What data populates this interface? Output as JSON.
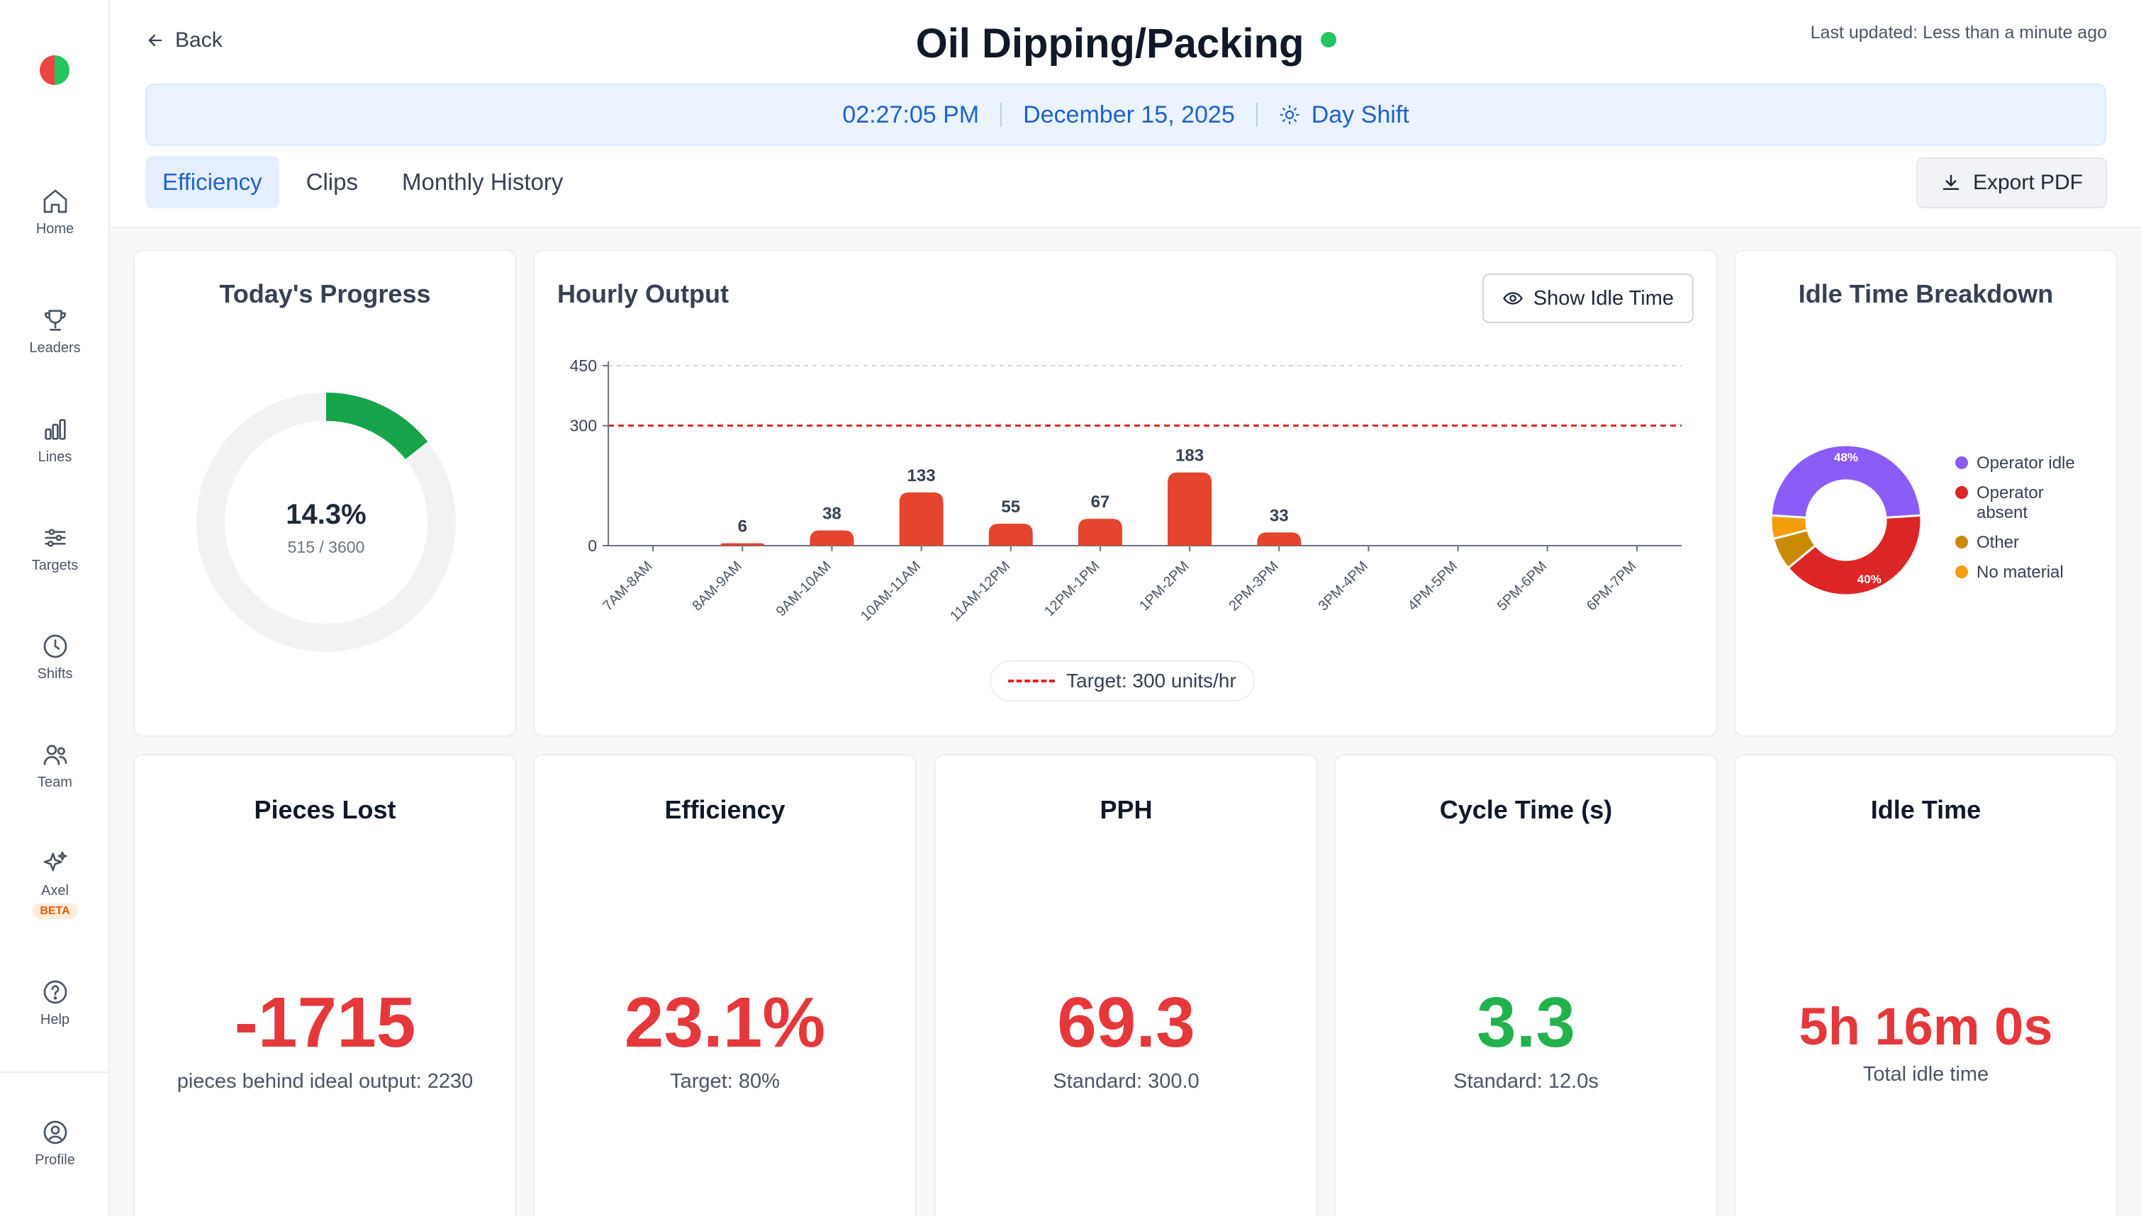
{
  "sidebar": {
    "items": [
      {
        "label": "Home",
        "icon": "home-icon"
      },
      {
        "label": "Leaders",
        "icon": "trophy-icon"
      },
      {
        "label": "Lines",
        "icon": "bar-chart-icon"
      },
      {
        "label": "Targets",
        "icon": "sliders-icon"
      },
      {
        "label": "Shifts",
        "icon": "clock-icon"
      },
      {
        "label": "Team",
        "icon": "users-icon"
      },
      {
        "label": "Axel",
        "icon": "sparkles-icon",
        "badge": "BETA"
      },
      {
        "label": "Help",
        "icon": "help-circle-icon"
      },
      {
        "label": "Profile",
        "icon": "user-circle-icon"
      }
    ]
  },
  "header": {
    "back_label": "Back",
    "title": "Oil Dipping/Packing",
    "last_updated": "Last updated: Less than a minute ago",
    "time": "02:27:05 PM",
    "date": "December 15, 2025",
    "shift": "Day Shift",
    "tabs": [
      {
        "label": "Efficiency",
        "active": true
      },
      {
        "label": "Clips",
        "active": false
      },
      {
        "label": "Monthly History",
        "active": false
      }
    ],
    "export_label": "Export PDF"
  },
  "progress": {
    "title": "Today's Progress",
    "percent_label": "14.3%",
    "count_label": "515 / 3600",
    "fraction": 0.143
  },
  "hourly": {
    "title": "Hourly Output",
    "idle_button": "Show Idle Time",
    "target_label": "Target: 300 units/hr"
  },
  "breakdown": {
    "title": "Idle Time Breakdown"
  },
  "chart_data": [
    {
      "type": "bar",
      "title": "Hourly Output",
      "categories": [
        "7AM-8AM",
        "8AM-9AM",
        "9AM-10AM",
        "10AM-11AM",
        "11AM-12PM",
        "12PM-1PM",
        "1PM-2PM",
        "2PM-3PM",
        "3PM-4PM",
        "4PM-5PM",
        "5PM-6PM",
        "6PM-7PM"
      ],
      "values": [
        0,
        6,
        38,
        133,
        55,
        67,
        183,
        33,
        null,
        null,
        null,
        null
      ],
      "yticks": [
        0,
        300,
        450
      ],
      "ylim": [
        0,
        450
      ],
      "target": 300,
      "legend": "Target: 300 units/hr",
      "colors": {
        "bar": "#e5452f",
        "target": "#dc2626"
      }
    },
    {
      "type": "pie",
      "title": "Idle Time Breakdown",
      "slices": [
        {
          "label": "Operator idle",
          "value": 48,
          "display": "48%",
          "color": "#8b5cf6"
        },
        {
          "label": "Operator absent",
          "value": 40,
          "display": "40%",
          "color": "#dc2626"
        },
        {
          "label": "Other",
          "value": 7,
          "display": "",
          "color": "#ca8a04"
        },
        {
          "label": "No material",
          "value": 5,
          "display": "",
          "color": "#f59e0b"
        }
      ]
    }
  ],
  "metrics": [
    {
      "title": "Pieces Lost",
      "value": "-1715",
      "sub": "pieces behind ideal output: 2230",
      "tone": "red"
    },
    {
      "title": "Efficiency",
      "value": "23.1%",
      "sub": "Target: 80%",
      "tone": "red"
    },
    {
      "title": "PPH",
      "value": "69.3",
      "sub": "Standard: 300.0",
      "tone": "red"
    },
    {
      "title": "Cycle Time (s)",
      "value": "3.3",
      "sub": "Standard: 12.0s",
      "tone": "green"
    },
    {
      "title": "Idle Time",
      "value": "5h 16m 0s",
      "sub": "Total idle time",
      "tone": "red"
    }
  ]
}
